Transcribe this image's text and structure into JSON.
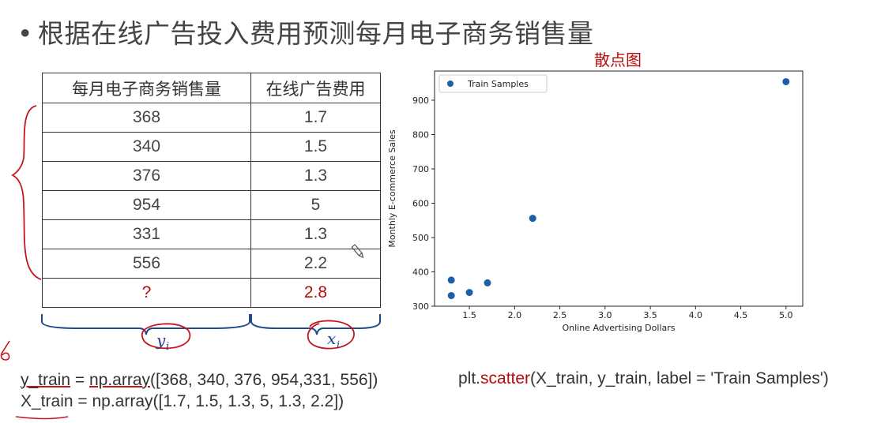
{
  "slide": {
    "bullet": "•",
    "title": "根据在线广告投入费用预测每月电子商务销售量",
    "chart_caption": "散点图"
  },
  "table": {
    "headers": [
      "每月电子商务销售量",
      "在线广告费用"
    ],
    "rows": [
      [
        "368",
        "1.7"
      ],
      [
        "340",
        "1.5"
      ],
      [
        "376",
        "1.3"
      ],
      [
        "954",
        "5"
      ],
      [
        "331",
        "1.3"
      ],
      [
        "556",
        "2.2"
      ]
    ],
    "query_row": [
      "?",
      "2.8"
    ],
    "brace_labels": {
      "y": "y",
      "y_sub": "i",
      "x": "x",
      "x_sub": "i"
    }
  },
  "code": {
    "y_var": "y_train",
    "y_mid": " = ",
    "y_fn": "np.array",
    "y_args": "([368, 340, 376, 954,331, 556])",
    "x_var": "X_train",
    "x_mid": " = ",
    "x_fn": "np.array",
    "x_args": "([1.7, 1.5, 1.3, 5,  1.3, 2.2])",
    "plot_prefix": "plt.",
    "plot_fn": "scatter",
    "plot_args": "(X_train, y_train, label = 'Train Samples')"
  },
  "colors": {
    "accent_red": "#b50d0d",
    "point_blue": "#1f5fa8",
    "ink_red": "#c4161c"
  },
  "icons": [
    "pen-cursor-icon"
  ],
  "chart_data": {
    "type": "scatter",
    "series": [
      {
        "name": "Train Samples",
        "x": [
          1.7,
          1.5,
          1.3,
          5,
          1.3,
          2.2
        ],
        "y": [
          368,
          340,
          376,
          954,
          331,
          556
        ]
      }
    ],
    "xlabel": "Online Advertising Dollars",
    "ylabel": "Monthly E-commerce Sales",
    "xticks": [
      "1.5",
      "2.0",
      "2.5",
      "3.0",
      "3.5",
      "4.0",
      "4.5",
      "5.0"
    ],
    "yticks": [
      "300",
      "400",
      "500",
      "600",
      "700",
      "800",
      "900"
    ],
    "xlim": [
      1.115,
      5.185
    ],
    "ylim": [
      300,
      985
    ],
    "legend": "top-left",
    "grid": false
  }
}
